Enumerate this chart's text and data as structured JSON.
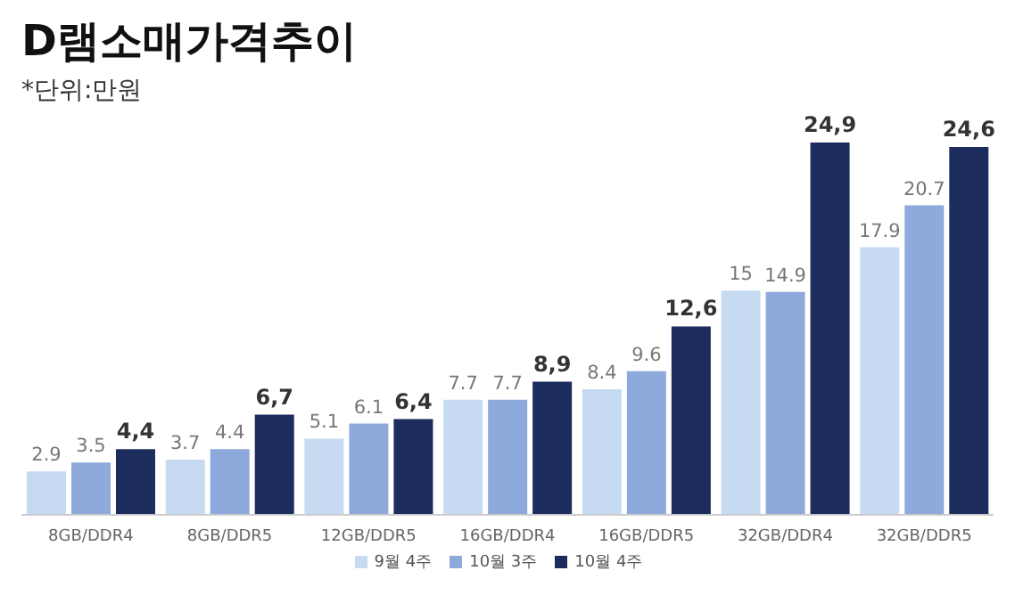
{
  "chart_data": {
    "type": "bar",
    "title": "D램소매가격추이",
    "subtitle": "*단위:만원",
    "categories": [
      "8GB/DDR4",
      "8GB/DDR5",
      "12GB/DDR5",
      "16GB/DDR4",
      "16GB/DDR5",
      "32GB/DDR4",
      "32GB/DDR5"
    ],
    "series": [
      {
        "name": "9월 4주",
        "color": "#c6dbf2",
        "values": [
          2.9,
          3.7,
          5.1,
          7.7,
          8.4,
          15,
          17.9
        ],
        "value_labels": [
          "2.9",
          "3.7",
          "5.1",
          "7.7",
          "8.4",
          "15",
          "17.9"
        ]
      },
      {
        "name": "10월 3주",
        "color": "#8ea9dc",
        "values": [
          3.5,
          4.4,
          6.1,
          7.7,
          9.6,
          14.9,
          20.7
        ],
        "value_labels": [
          "3.5",
          "4.4",
          "6.1",
          "7.7",
          "9.6",
          "14.9",
          "20.7"
        ]
      },
      {
        "name": "10월 4주",
        "color": "#1c2c5c",
        "values": [
          4.4,
          6.7,
          6.4,
          8.9,
          12.6,
          24.9,
          24.6
        ],
        "value_labels": [
          "4,4",
          "6,7",
          "6,4",
          "8,9",
          "12,6",
          "24,9",
          "24,6"
        ]
      }
    ],
    "legend": "bottom",
    "grid": false
  }
}
